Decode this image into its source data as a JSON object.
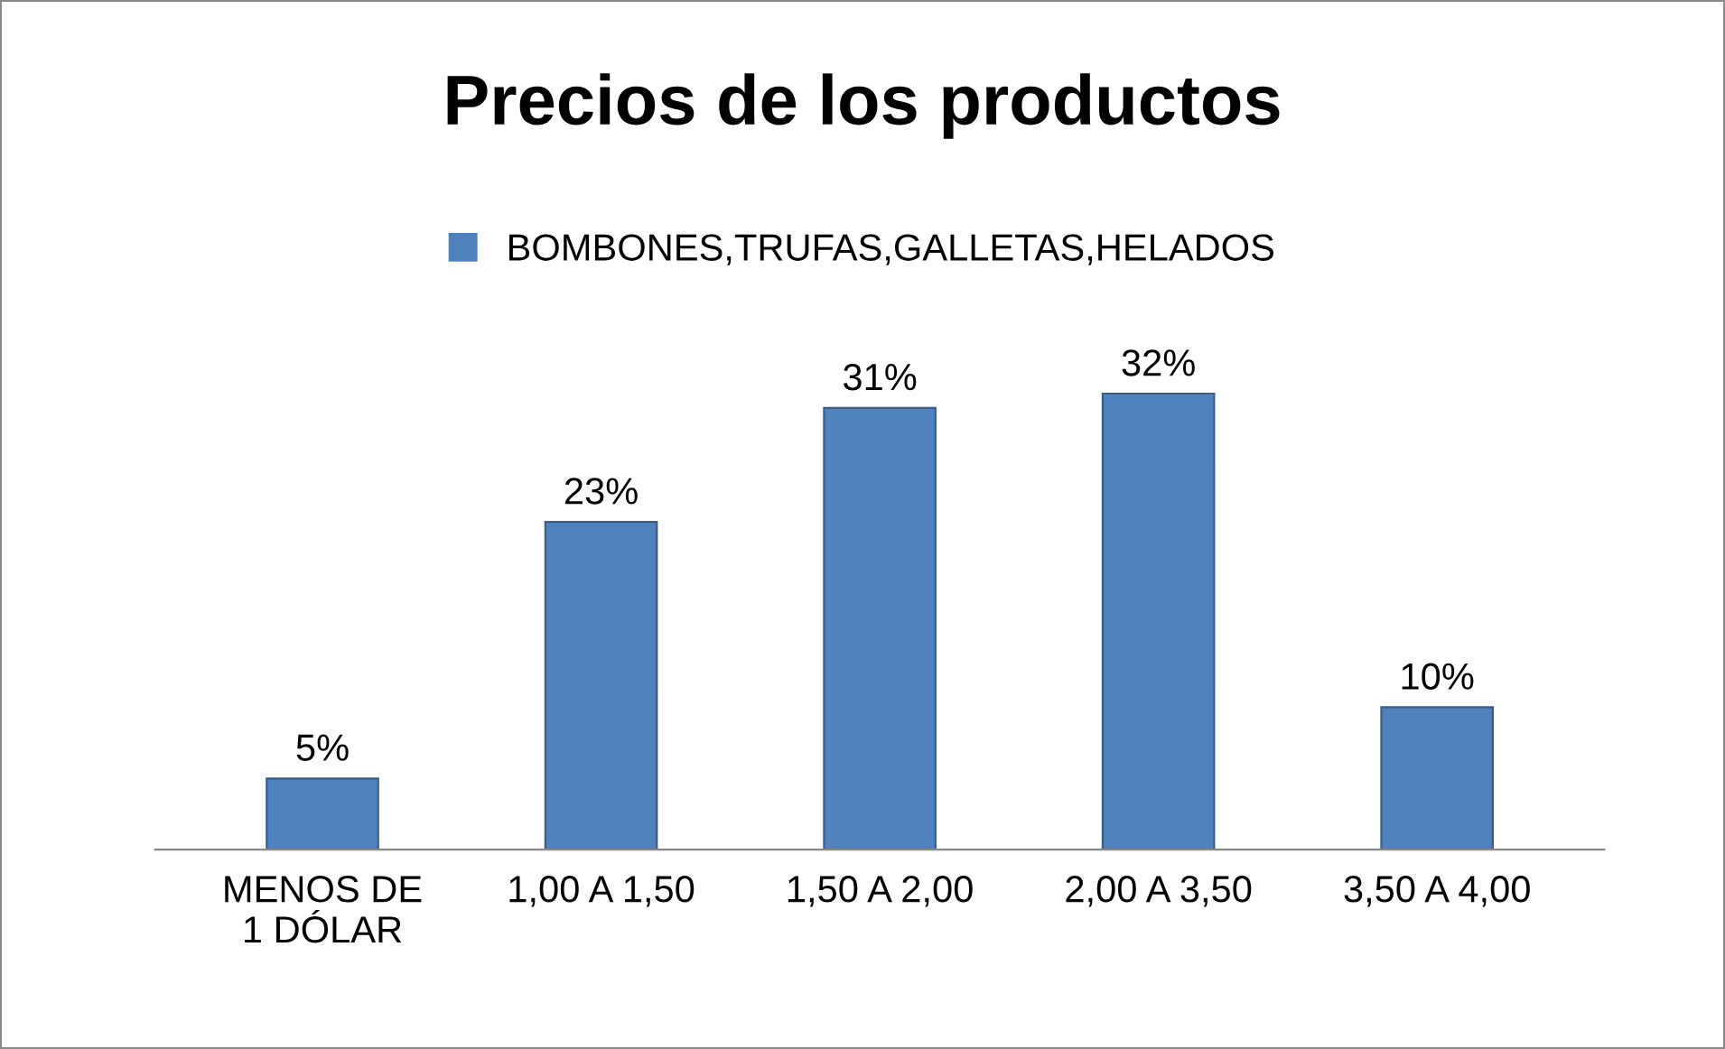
{
  "chart_data": {
    "type": "bar",
    "title": "Precios de los productos",
    "categories": [
      "MENOS DE\n1 DÓLAR",
      "1,00 A 1,50",
      "1,50 A 2,00",
      "2,00 A 3,50",
      "3,50 A 4,00"
    ],
    "series": [
      {
        "name": "BOMBONES,TRUFAS,GALLETAS,HELADOS",
        "color": "#4f81bd",
        "values": [
          5,
          23,
          31,
          32,
          10
        ],
        "value_labels": [
          "5%",
          "23%",
          "31%",
          "32%",
          "10%"
        ]
      }
    ],
    "legend": "top",
    "grid": false
  }
}
